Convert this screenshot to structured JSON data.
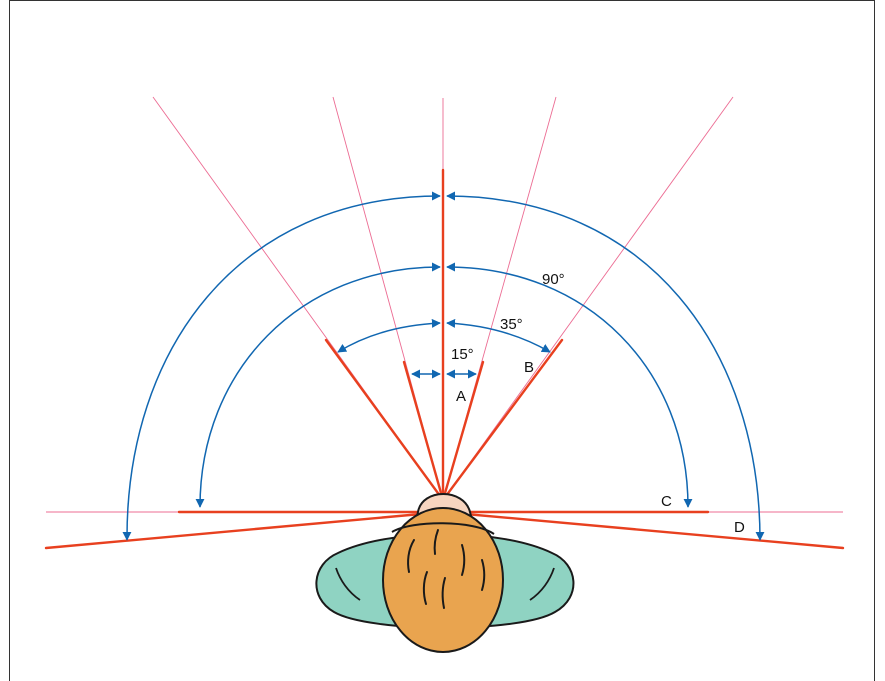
{
  "labels": {
    "a": "A",
    "b": "B",
    "c": "C",
    "d": "D",
    "angle_15": "15°",
    "angle_35": "35°",
    "angle_90": "90°"
  },
  "colors": {
    "red_line": "#e8401f",
    "pink_line": "#ec6c93",
    "blue_arrow": "#1167b1",
    "head_skin": "#e9a44f",
    "face_skin": "#f7d5c0",
    "shoulders": "#8fd3c2",
    "outline": "#1a1a1a",
    "border": "#333333"
  }
}
